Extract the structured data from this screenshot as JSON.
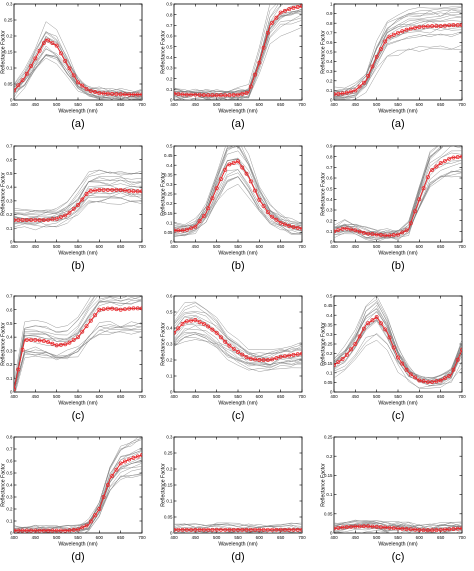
{
  "figure": {
    "panels": [
      {
        "id": "p1",
        "caption": "(a)",
        "ylabel": "Reflectance Factor",
        "xlabel": "Wavelength (nm)",
        "yticks": [
          "0",
          "0.05",
          "0.1",
          "0.15",
          "0.2",
          "0.25",
          "0.3"
        ],
        "xticks": [
          "400",
          "450",
          "500",
          "550",
          "600",
          "650",
          "700"
        ]
      },
      {
        "id": "p2",
        "caption": "(a)",
        "ylabel": "Reflectance Factor",
        "xlabel": "Wavelength (nm)",
        "yticks": [
          "0",
          "0.1",
          "0.2",
          "0.3",
          "0.4",
          "0.5",
          "0.6",
          "0.7",
          "0.8",
          "0.9"
        ],
        "xticks": [
          "400",
          "450",
          "500",
          "550",
          "600",
          "650",
          "700"
        ]
      },
      {
        "id": "p3",
        "caption": "(a)",
        "ylabel": "Reflectance Factor",
        "xlabel": "Wavelength (nm)",
        "yticks": [
          "0",
          "0.1",
          "0.2",
          "0.3",
          "0.4",
          "0.5",
          "0.6",
          "0.7",
          "0.8",
          "0.9",
          "1"
        ],
        "xticks": [
          "400",
          "450",
          "500",
          "550",
          "600",
          "650",
          "700"
        ]
      },
      {
        "id": "p4",
        "caption": "(b)",
        "ylabel": "Reflectance Factor",
        "xlabel": "Wavelength (nm)",
        "yticks": [
          "0",
          "0.1",
          "0.2",
          "0.3",
          "0.4",
          "0.5",
          "0.6",
          "0.7"
        ],
        "xticks": [
          "400",
          "450",
          "500",
          "550",
          "600",
          "650",
          "700"
        ]
      },
      {
        "id": "p5",
        "caption": "(b)",
        "ylabel": "Reflectance Factor",
        "xlabel": "Wavelength (nm)",
        "yticks": [
          "0",
          "0.05",
          "0.1",
          "0.15",
          "0.2",
          "0.25",
          "0.3",
          "0.35",
          "0.4",
          "0.45",
          "0.5"
        ],
        "xticks": [
          "400",
          "450",
          "500",
          "550",
          "600",
          "650",
          "700"
        ]
      },
      {
        "id": "p6",
        "caption": "(b)",
        "ylabel": "Reflectance Factor",
        "xlabel": "Wavelength (nm)",
        "yticks": [
          "0",
          "0.1",
          "0.2",
          "0.3",
          "0.4",
          "0.5",
          "0.6",
          "0.7",
          "0.8",
          "0.9"
        ],
        "xticks": [
          "400",
          "450",
          "500",
          "550",
          "600",
          "650",
          "700"
        ]
      },
      {
        "id": "p7",
        "caption": "(c)",
        "ylabel": "Reflectance Factor",
        "xlabel": "Wavelength (nm)",
        "yticks": [
          "0",
          "0.1",
          "0.2",
          "0.3",
          "0.4",
          "0.5",
          "0.6",
          "0.7"
        ],
        "xticks": [
          "400",
          "450",
          "500",
          "550",
          "600",
          "650",
          "700"
        ]
      },
      {
        "id": "p8",
        "caption": "(c)",
        "ylabel": "Reflectance Factor",
        "xlabel": "Wavelength (nm)",
        "yticks": [
          "0",
          "0.1",
          "0.2",
          "0.3",
          "0.4",
          "0.5",
          "0.6"
        ],
        "xticks": [
          "400",
          "450",
          "500",
          "550",
          "600",
          "650",
          "700"
        ]
      },
      {
        "id": "p9",
        "caption": "(c)",
        "ylabel": "Reflectance Factor",
        "xlabel": "Wavelength (nm)",
        "yticks": [
          "0",
          "0.05",
          "0.1",
          "0.15",
          "0.2",
          "0.25",
          "0.3",
          "0.35",
          "0.4",
          "0.45",
          "0.5"
        ],
        "xticks": [
          "400",
          "450",
          "500",
          "550",
          "600",
          "650",
          "700"
        ]
      },
      {
        "id": "p10",
        "caption": "(d)",
        "ylabel": "Reflectance Factor",
        "xlabel": "Wavelength (nm)",
        "yticks": [
          "0",
          "0.1",
          "0.2",
          "0.3",
          "0.4",
          "0.5",
          "0.6",
          "0.7",
          "0.8"
        ],
        "xticks": [
          "400",
          "450",
          "500",
          "550",
          "600",
          "650",
          "700"
        ]
      },
      {
        "id": "p11",
        "caption": "(d)",
        "ylabel": "Reflectance Factor",
        "xlabel": "Wavelength (nm)",
        "yticks": [
          "0",
          "0.05",
          "0.1",
          "0.15",
          "0.2",
          "0.25",
          "0.3"
        ],
        "xticks": [
          "400",
          "450",
          "500",
          "550",
          "600",
          "650",
          "700"
        ]
      },
      {
        "id": "p12",
        "caption": "(c)",
        "ylabel": "Reflectance Factor",
        "xlabel": "Wavelength (nm)",
        "yticks": [
          "0",
          "0.05",
          "0.1",
          "0.15",
          "0.2",
          "0.25"
        ],
        "xticks": [
          "400",
          "450",
          "500",
          "550",
          "600",
          "650",
          "700"
        ]
      }
    ]
  },
  "chart_data": [
    {
      "type": "line",
      "caption": "(a)",
      "xlabel": "Wavelength (nm)",
      "ylabel": "Reflectance Factor",
      "xlim": [
        400,
        700
      ],
      "ylim": [
        0,
        0.3
      ],
      "grid": false,
      "series_colors": {
        "samples": "#7a7a7a",
        "highlighted": "#e8262a"
      },
      "x": [
        400,
        425,
        450,
        475,
        500,
        525,
        550,
        575,
        600,
        625,
        650,
        675,
        700
      ],
      "series": [
        {
          "values": [
            0.03,
            0.07,
            0.13,
            0.19,
            0.17,
            0.11,
            0.055,
            0.03,
            0.022,
            0.019,
            0.018,
            0.017,
            0.017
          ]
        }
      ]
    },
    {
      "type": "line",
      "caption": "(a)",
      "xlabel": "Wavelength (nm)",
      "ylabel": "Reflectance Factor",
      "xlim": [
        400,
        700
      ],
      "ylim": [
        0,
        0.9
      ],
      "grid": false,
      "series_colors": {
        "samples": "#7a7a7a",
        "highlighted": "#e8262a"
      },
      "x": [
        400,
        425,
        450,
        475,
        500,
        525,
        550,
        575,
        600,
        625,
        650,
        675,
        700
      ],
      "series": [
        {
          "values": [
            0.06,
            0.05,
            0.05,
            0.045,
            0.045,
            0.045,
            0.05,
            0.07,
            0.35,
            0.7,
            0.82,
            0.86,
            0.88
          ]
        }
      ]
    },
    {
      "type": "line",
      "caption": "(a)",
      "xlabel": "Wavelength (nm)",
      "ylabel": "Reflectance Factor",
      "xlim": [
        400,
        700
      ],
      "ylim": [
        0,
        1
      ],
      "grid": false,
      "series_colors": {
        "samples": "#7a7a7a",
        "highlighted": "#e8262a"
      },
      "x": [
        400,
        425,
        450,
        475,
        500,
        525,
        550,
        575,
        600,
        625,
        650,
        675,
        700
      ],
      "series": [
        {
          "values": [
            0.06,
            0.07,
            0.1,
            0.2,
            0.45,
            0.65,
            0.7,
            0.74,
            0.76,
            0.77,
            0.77,
            0.78,
            0.78
          ]
        }
      ]
    },
    {
      "type": "line",
      "caption": "(b)",
      "xlabel": "Wavelength (nm)",
      "ylabel": "Reflectance Factor",
      "xlim": [
        400,
        700
      ],
      "ylim": [
        0,
        0.7
      ],
      "grid": false,
      "series_colors": {
        "samples": "#7a7a7a",
        "highlighted": "#e8262a"
      },
      "x": [
        400,
        425,
        450,
        475,
        500,
        525,
        550,
        575,
        600,
        625,
        650,
        675,
        700
      ],
      "series": [
        {
          "values": [
            0.16,
            0.16,
            0.16,
            0.16,
            0.17,
            0.2,
            0.27,
            0.37,
            0.38,
            0.38,
            0.38,
            0.37,
            0.37
          ]
        }
      ]
    },
    {
      "type": "line",
      "caption": "(b)",
      "xlabel": "Wavelength (nm)",
      "ylabel": "Reflectance Factor",
      "xlim": [
        400,
        700
      ],
      "ylim": [
        0,
        0.5
      ],
      "grid": false,
      "series_colors": {
        "samples": "#7a7a7a",
        "highlighted": "#e8262a"
      },
      "x": [
        400,
        425,
        450,
        475,
        500,
        525,
        550,
        575,
        600,
        625,
        650,
        675,
        700
      ],
      "series": [
        {
          "values": [
            0.06,
            0.06,
            0.08,
            0.15,
            0.28,
            0.4,
            0.42,
            0.34,
            0.22,
            0.14,
            0.1,
            0.08,
            0.07
          ]
        }
      ]
    },
    {
      "type": "line",
      "caption": "(b)",
      "xlabel": "Wavelength (nm)",
      "ylabel": "Reflectance Factor",
      "xlim": [
        400,
        700
      ],
      "ylim": [
        0,
        0.9
      ],
      "grid": false,
      "series_colors": {
        "samples": "#7a7a7a",
        "highlighted": "#e8262a"
      },
      "x": [
        400,
        425,
        450,
        475,
        500,
        525,
        550,
        575,
        600,
        625,
        650,
        675,
        700
      ],
      "series": [
        {
          "values": [
            0.1,
            0.13,
            0.11,
            0.08,
            0.07,
            0.06,
            0.07,
            0.12,
            0.4,
            0.66,
            0.74,
            0.79,
            0.8
          ]
        }
      ]
    },
    {
      "type": "line",
      "caption": "(c)",
      "xlabel": "Wavelength (nm)",
      "ylabel": "Reflectance Factor",
      "xlim": [
        400,
        700
      ],
      "ylim": [
        0,
        0.7
      ],
      "grid": false,
      "series_colors": {
        "samples": "#7a7a7a",
        "highlighted": "#e8262a"
      },
      "x": [
        400,
        425,
        450,
        475,
        500,
        525,
        550,
        575,
        600,
        625,
        650,
        675,
        700
      ],
      "series": [
        {
          "values": [
            0.02,
            0.38,
            0.38,
            0.37,
            0.34,
            0.35,
            0.4,
            0.5,
            0.6,
            0.61,
            0.6,
            0.61,
            0.61
          ]
        }
      ]
    },
    {
      "type": "line",
      "caption": "(c)",
      "xlabel": "Wavelength (nm)",
      "ylabel": "Reflectance Factor",
      "xlim": [
        400,
        700
      ],
      "ylim": [
        0,
        0.6
      ],
      "grid": false,
      "series_colors": {
        "samples": "#7a7a7a",
        "highlighted": "#e8262a"
      },
      "x": [
        400,
        425,
        450,
        475,
        500,
        525,
        550,
        575,
        600,
        625,
        650,
        675,
        700
      ],
      "series": [
        {
          "values": [
            0.37,
            0.44,
            0.45,
            0.42,
            0.37,
            0.3,
            0.25,
            0.21,
            0.2,
            0.2,
            0.22,
            0.23,
            0.24
          ]
        }
      ]
    },
    {
      "type": "line",
      "caption": "(c)",
      "xlabel": "Wavelength (nm)",
      "ylabel": "Reflectance Factor",
      "xlim": [
        400,
        700
      ],
      "ylim": [
        0,
        0.5
      ],
      "grid": false,
      "series_colors": {
        "samples": "#7a7a7a",
        "highlighted": "#e8262a"
      },
      "x": [
        400,
        425,
        450,
        475,
        500,
        525,
        550,
        575,
        600,
        625,
        650,
        675,
        700
      ],
      "series": [
        {
          "values": [
            0.14,
            0.18,
            0.25,
            0.35,
            0.39,
            0.31,
            0.18,
            0.1,
            0.06,
            0.05,
            0.06,
            0.09,
            0.22
          ]
        }
      ]
    },
    {
      "type": "line",
      "caption": "(d)",
      "xlabel": "Wavelength (nm)",
      "ylabel": "Reflectance Factor",
      "xlim": [
        400,
        700
      ],
      "ylim": [
        0,
        0.8
      ],
      "grid": false,
      "series_colors": {
        "samples": "#7a7a7a",
        "highlighted": "#e8262a"
      },
      "x": [
        400,
        425,
        450,
        475,
        500,
        525,
        550,
        575,
        600,
        625,
        650,
        675,
        700
      ],
      "series": [
        {
          "values": [
            0.02,
            0.02,
            0.02,
            0.02,
            0.02,
            0.02,
            0.03,
            0.07,
            0.2,
            0.45,
            0.58,
            0.62,
            0.65
          ]
        }
      ]
    },
    {
      "type": "line",
      "caption": "(d)",
      "xlabel": "Wavelength (nm)",
      "ylabel": "Reflectance Factor",
      "xlim": [
        400,
        700
      ],
      "ylim": [
        0,
        0.3
      ],
      "grid": false,
      "series_colors": {
        "samples": "#7a7a7a",
        "highlighted": "#e8262a"
      },
      "x": [
        400,
        425,
        450,
        475,
        500,
        525,
        550,
        575,
        600,
        625,
        650,
        675,
        700
      ],
      "series": [
        {
          "values": [
            0.01,
            0.01,
            0.01,
            0.01,
            0.01,
            0.01,
            0.01,
            0.01,
            0.01,
            0.01,
            0.01,
            0.01,
            0.01
          ]
        }
      ]
    },
    {
      "type": "line",
      "caption": "(c)",
      "xlabel": "Wavelength (nm)",
      "ylabel": "Reflectance Factor",
      "xlim": [
        400,
        700
      ],
      "ylim": [
        0,
        0.25
      ],
      "grid": false,
      "series_colors": {
        "samples": "#7a7a7a",
        "highlighted": "#e8262a"
      },
      "x": [
        400,
        425,
        450,
        475,
        500,
        525,
        550,
        575,
        600,
        625,
        650,
        675,
        700
      ],
      "series": [
        {
          "values": [
            0.012,
            0.015,
            0.017,
            0.018,
            0.016,
            0.014,
            0.012,
            0.01,
            0.008,
            0.007,
            0.008,
            0.01,
            0.012
          ]
        }
      ]
    }
  ]
}
